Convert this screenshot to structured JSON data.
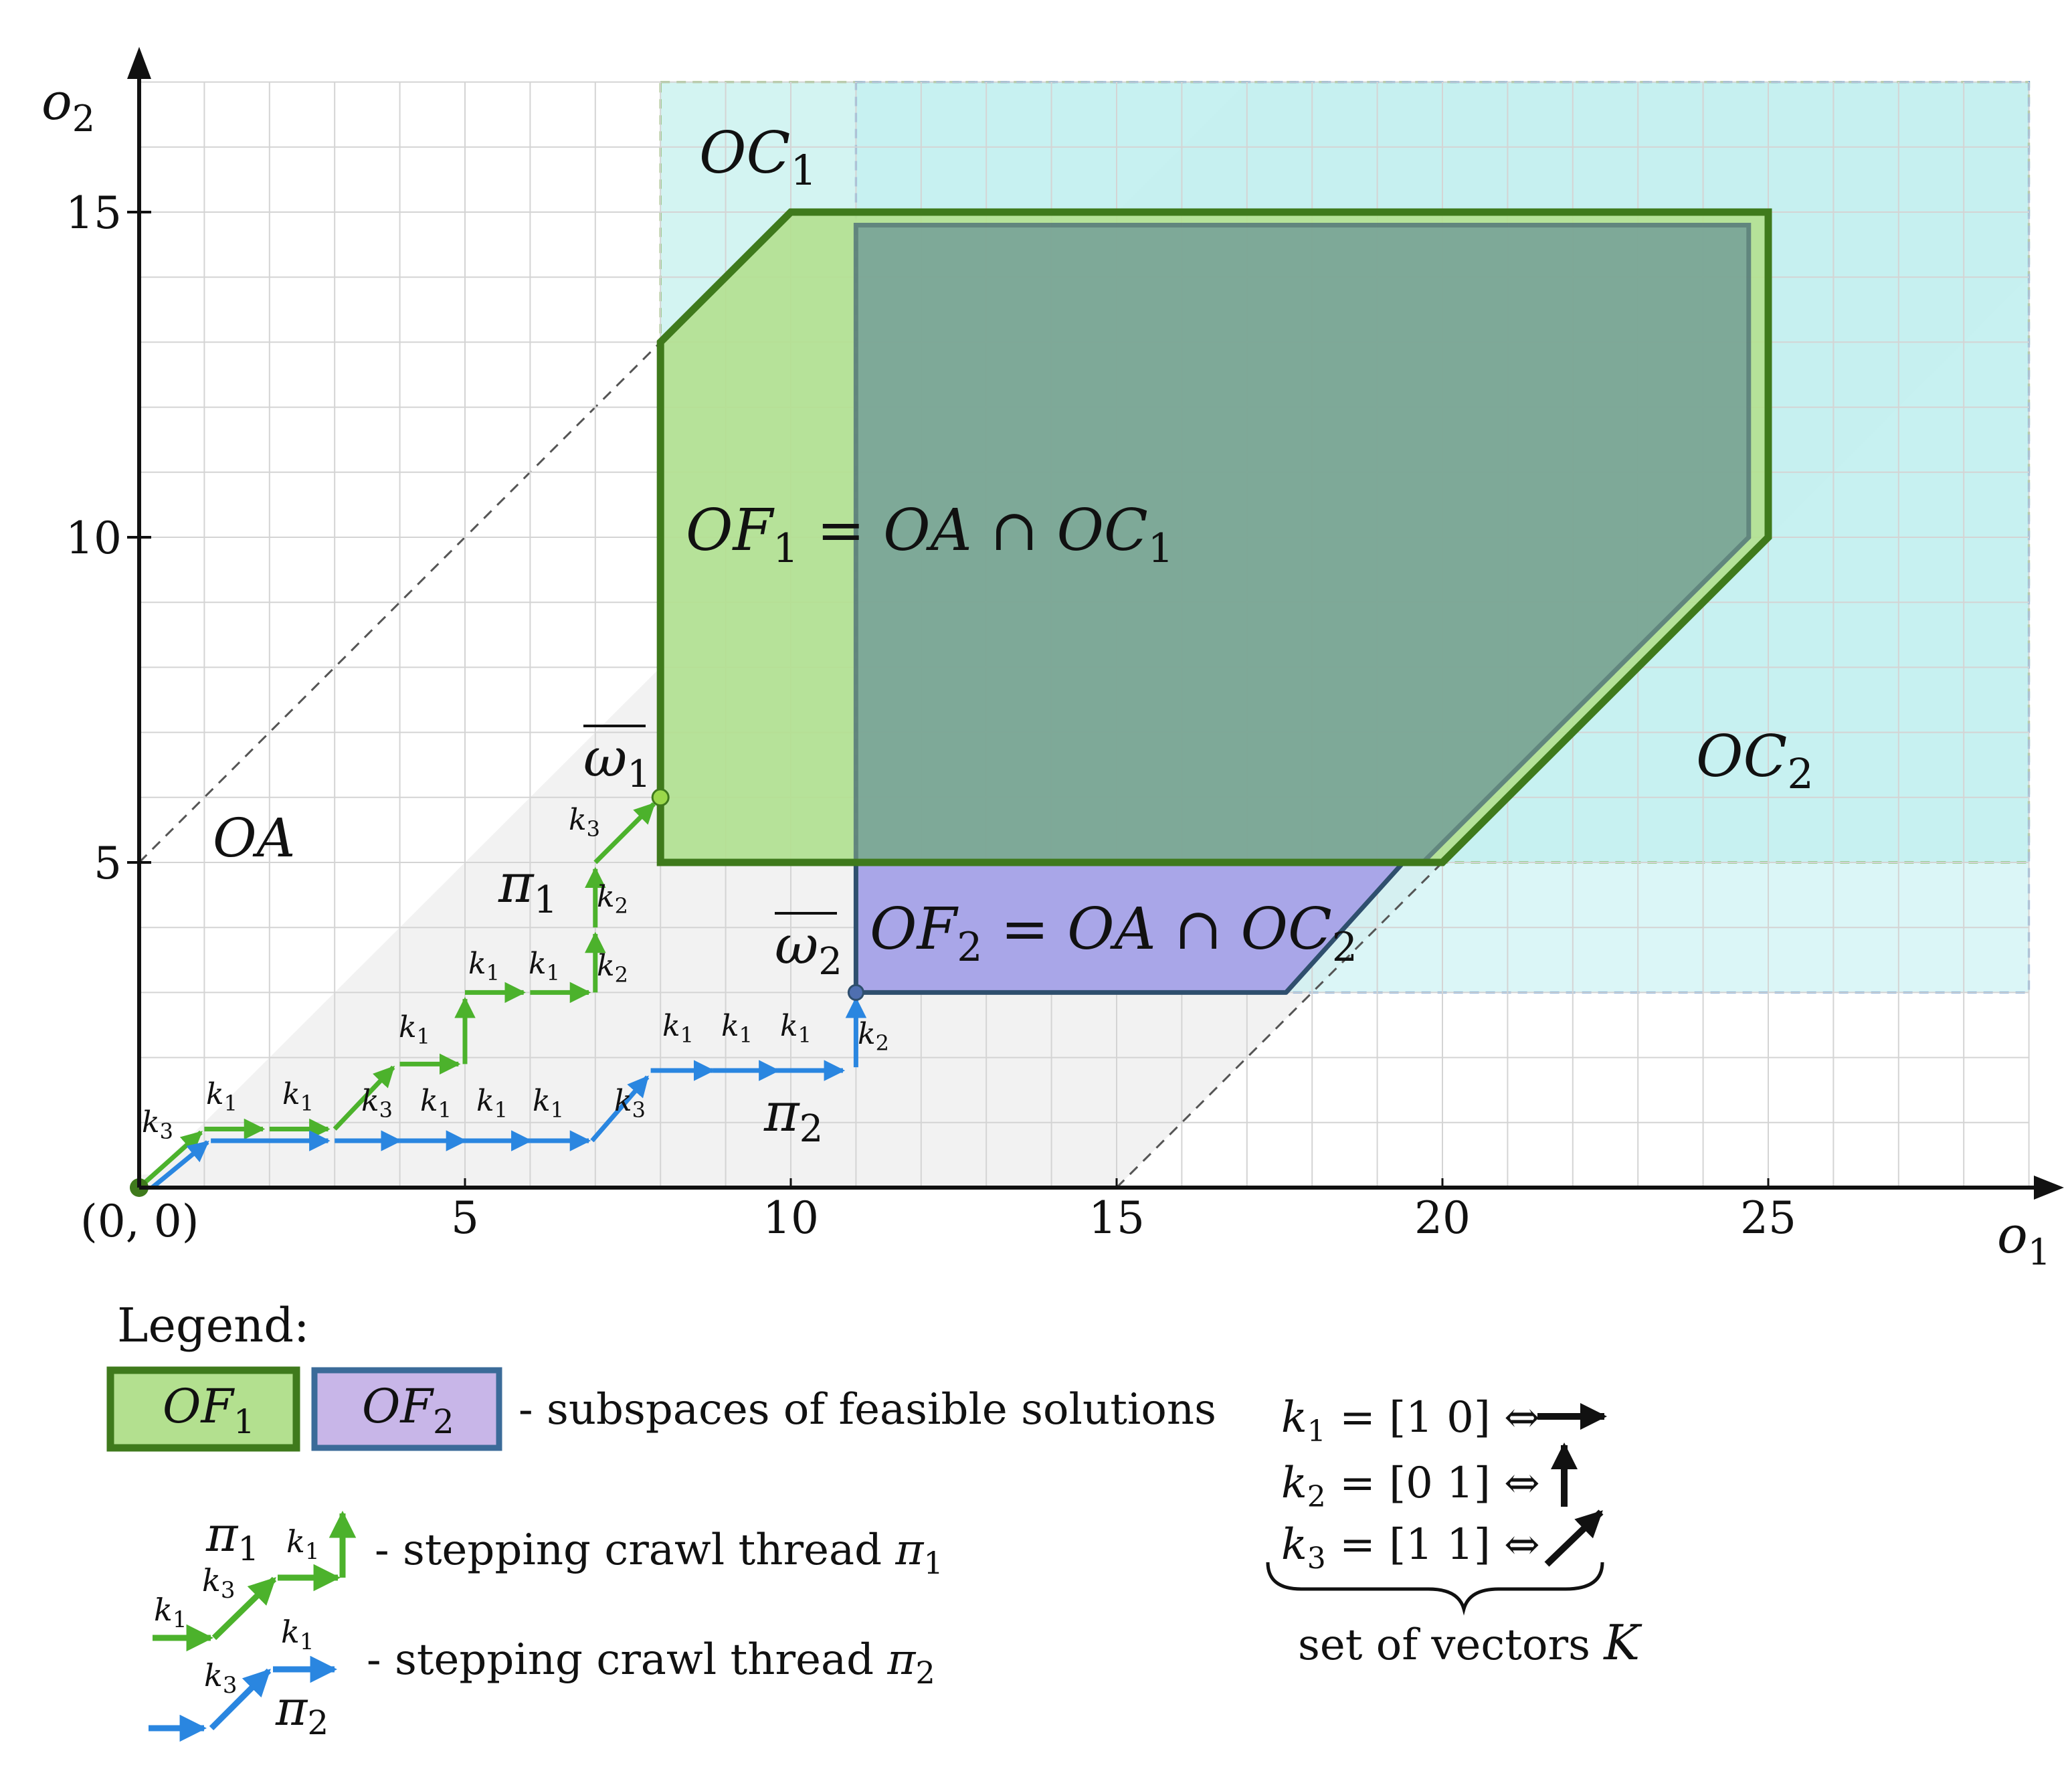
{
  "axes": {
    "x_label": "o",
    "x_label_sub": "1",
    "y_label": "o",
    "y_label_sub": "2",
    "origin_label": "(0, 0)",
    "x_ticks": [
      "5",
      "10",
      "15",
      "20",
      "25"
    ],
    "y_ticks": [
      "5",
      "10",
      "15"
    ],
    "xlim": [
      0,
      29
    ],
    "ylim": [
      0,
      17
    ]
  },
  "regions": {
    "oc1_label": "OC",
    "oc1_sub": "1",
    "oc2_label": "OC",
    "oc2_sub": "2",
    "oa_label": "OA",
    "of1_eq_a": "OF",
    "of1_eq_a_sub": "1",
    "of1_eq_b": " = OA ∩ OC",
    "of1_eq_b_sub": "1",
    "of2_eq_a": "OF",
    "of2_eq_a_sub": "2",
    "of2_eq_b": " = OA ∩ OC",
    "of2_eq_b_sub": "2",
    "colors": {
      "of1_fill": "#b3e08f",
      "of1_stroke": "#3f7a1c",
      "of2_fill": "#a9a6e8",
      "of2_stroke": "#2f4f6e",
      "oc1": "#c4f0ee",
      "oc2": "#bdeef0",
      "oa": "#f2f2f2",
      "green_path": "#4cb22c",
      "blue_path": "#2a86e0"
    }
  },
  "points": {
    "w1": "ω",
    "w1_sub": "1",
    "w2": "ω",
    "w2_sub": "2"
  },
  "paths": {
    "pi1": "π",
    "pi1_sub": "1",
    "pi2": "π",
    "pi2_sub": "2",
    "k": "k",
    "sub1": "1",
    "sub2": "2",
    "sub3": "3"
  },
  "legend": {
    "title": "Legend:",
    "box1": "OF",
    "box1_sub": "1",
    "box2": "OF",
    "box2_sub": "2",
    "subspaces_text": "- subspaces of feasible solutions",
    "thread1_text": "- stepping crawl thread ",
    "thread1_sym": "π",
    "thread1_sub": "1",
    "thread2_text": "- stepping crawl thread ",
    "thread2_sym": "π",
    "thread2_sub": "2",
    "k1_def": " = [1  0]  ⇔",
    "k2_def": " = [0  1]  ⇔",
    "k3_def": " = [1  1]  ⇔",
    "vectors_text": "set of vectors ",
    "vectors_sym": "K"
  }
}
